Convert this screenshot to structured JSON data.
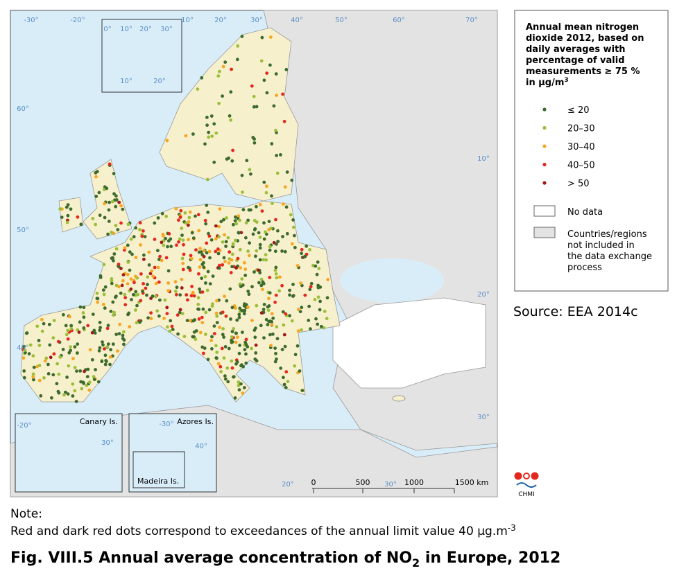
{
  "legend": {
    "title_lines": [
      "Annual mean nitrogen",
      "dioxide 2012, based on",
      "daily averages with",
      "percentage of valid",
      "measurements ≥ 75 %"
    ],
    "title_unit": "in µg/m",
    "title_unit_sup": "3",
    "items": [
      {
        "label": "≤ 20",
        "color": "#3d6b2e"
      },
      {
        "label": "20–30",
        "color": "#9bbf3a"
      },
      {
        "label": "30–40",
        "color": "#f5a623"
      },
      {
        "label": "40–50",
        "color": "#e5281e"
      },
      {
        "label": "> 50",
        "color": "#a0191b"
      }
    ],
    "no_data": "No data",
    "not_included": [
      "Countries/regions",
      "not included in",
      "the data exchange",
      "process"
    ]
  },
  "source": "Source: EEA 2014c",
  "graticule_labels": [
    "-30°",
    "-20°",
    "0°",
    "10°",
    "20°",
    "30°",
    "10°",
    "20°",
    "30°",
    "40°",
    "50°",
    "60°",
    "70°",
    "60°",
    "50°",
    "40°",
    "10°",
    "20°",
    "10°",
    "20°",
    "30°",
    "20°",
    "30°",
    "-20°",
    "30°",
    "-30°",
    "40°"
  ],
  "insets": [
    "Canary Is.",
    "Azores Is.",
    "Madeira Is."
  ],
  "scale_labels": [
    "0",
    "500",
    "1000",
    "1500 km"
  ],
  "logo": "CHMI",
  "note": {
    "heading": "Note:",
    "text": "Red and dark red dots correspond to exceedances of the annual limit value 40 µg.m",
    "text_sup": "-3"
  },
  "figure_title": {
    "main": "Fig. VIII.5  Annual average concentration of NO",
    "sub": "2",
    "tail": " in Europe, 2012"
  }
}
